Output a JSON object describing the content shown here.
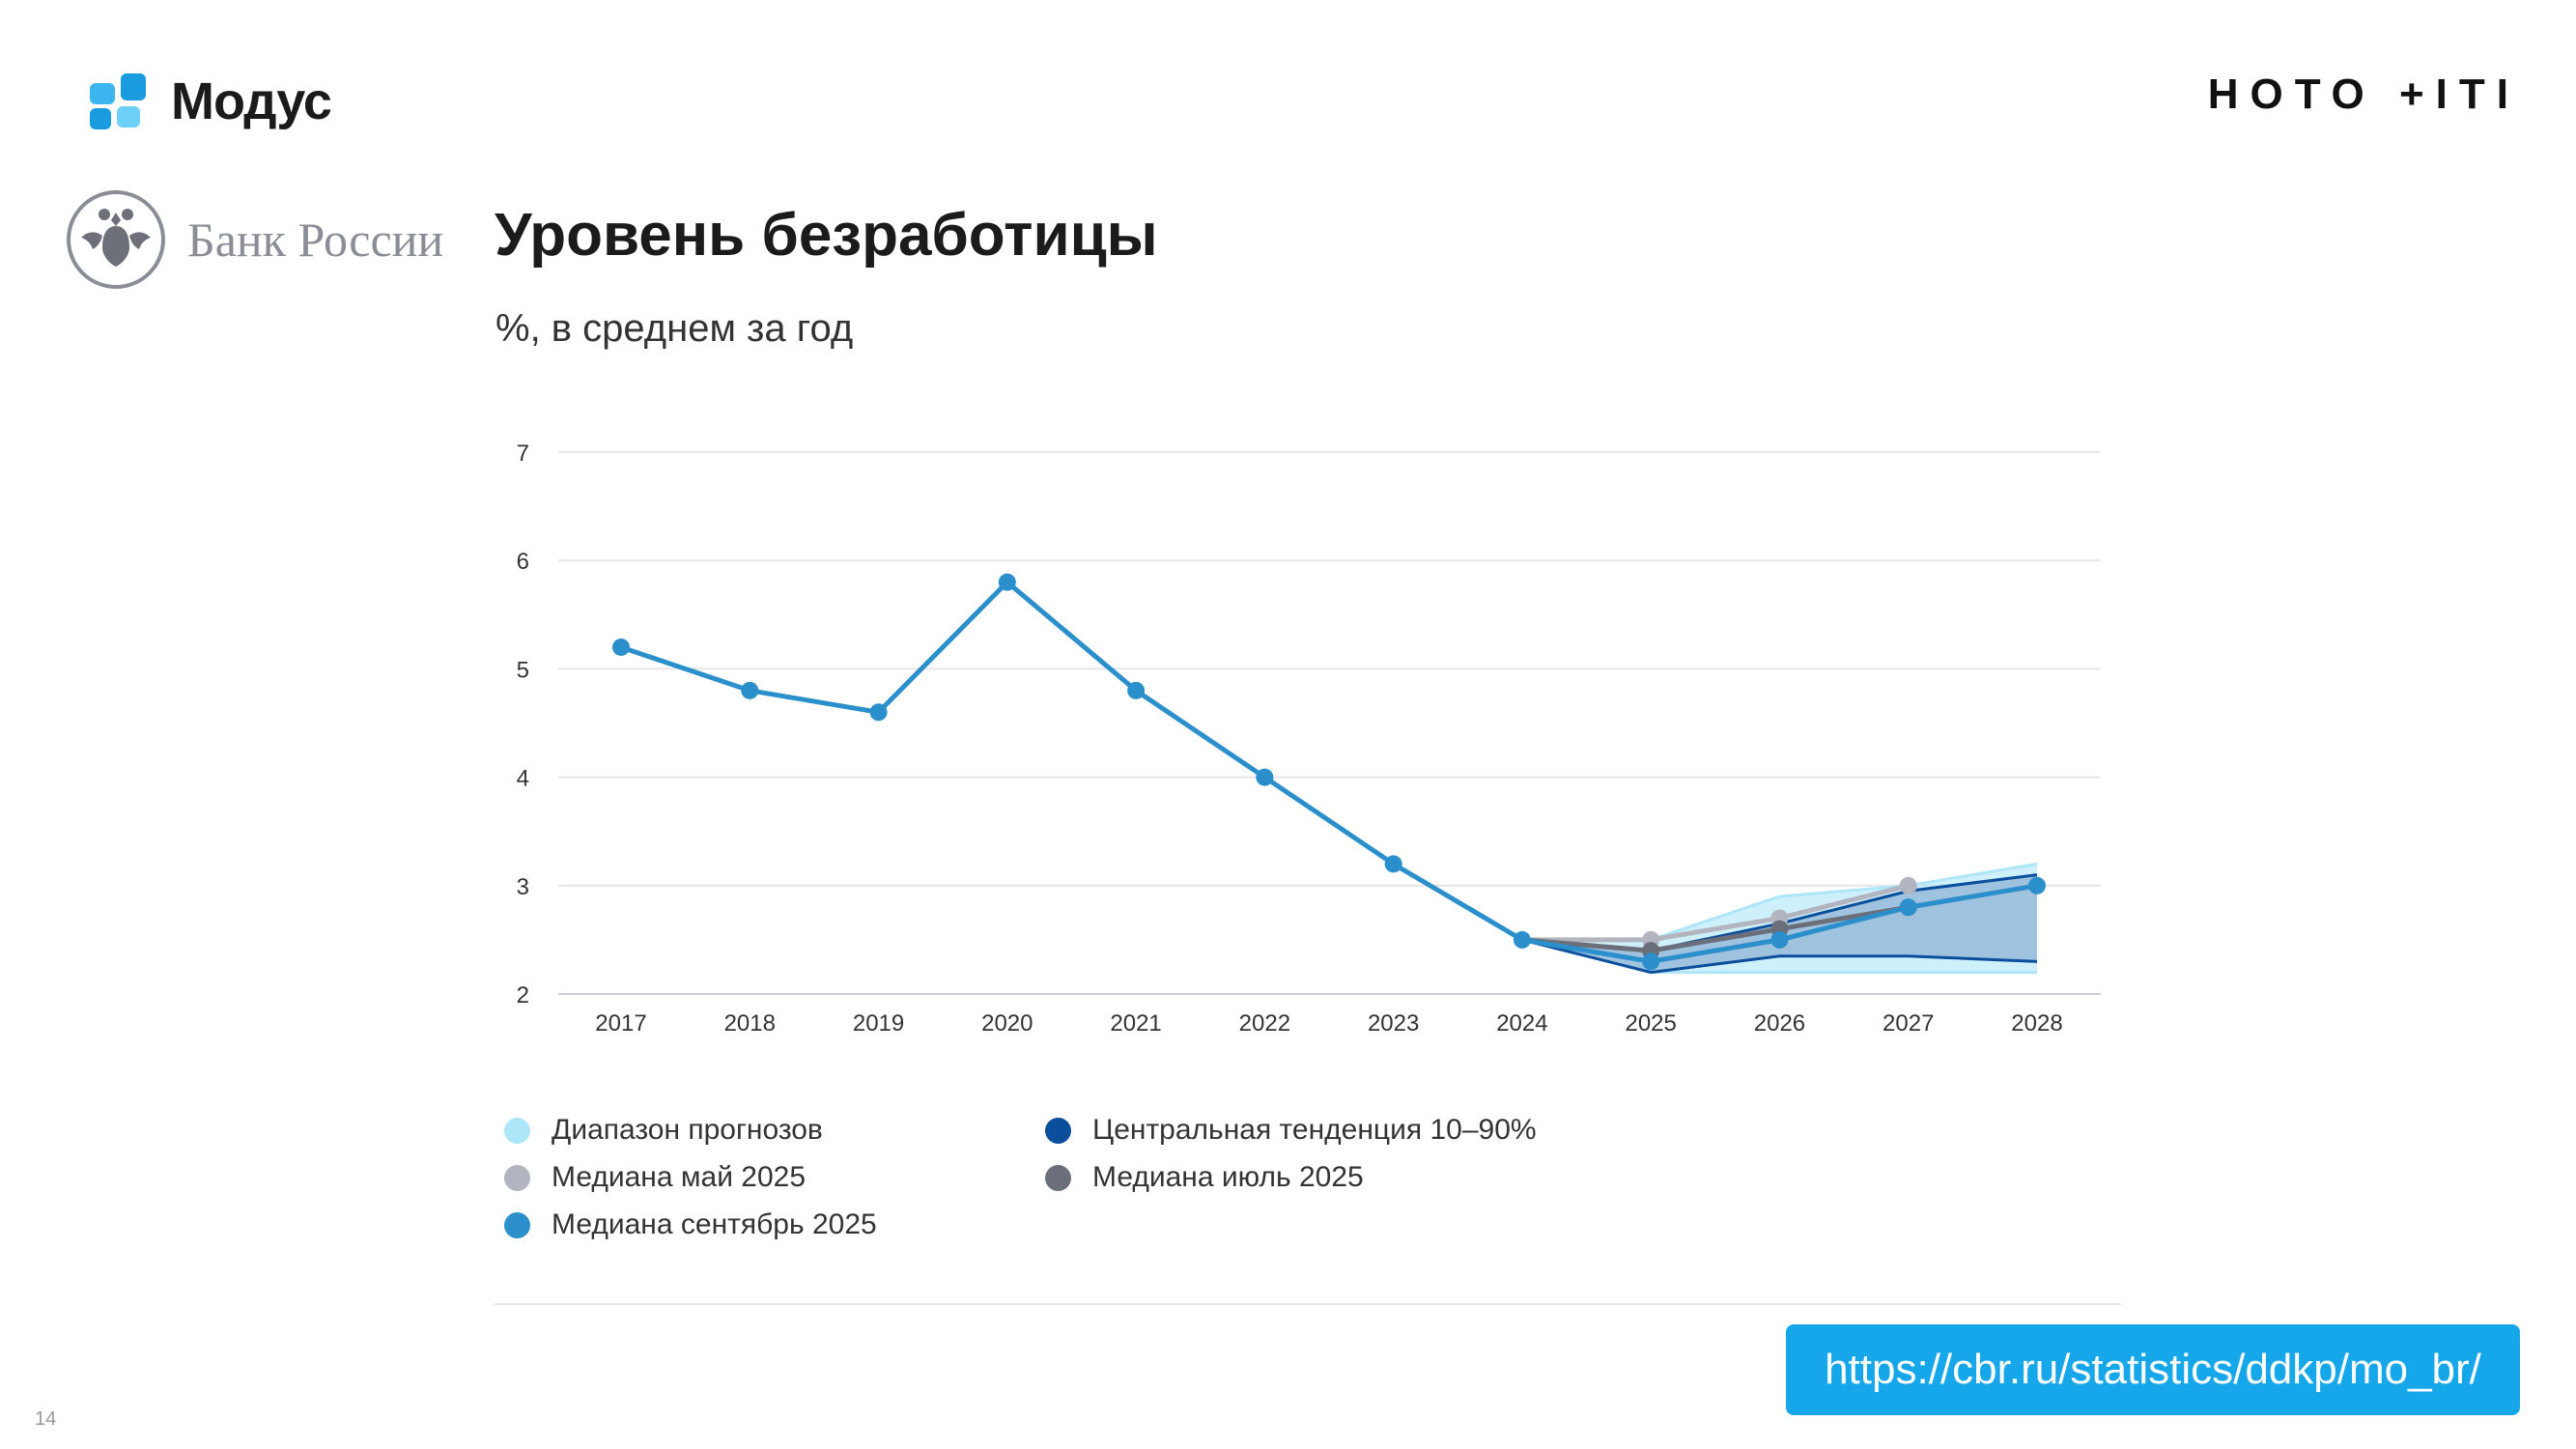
{
  "brand": {
    "name": "Модус"
  },
  "partner_logo": {
    "text": "НОТО +ITI"
  },
  "source_org": {
    "name": "Банк России"
  },
  "title": "Уровень безработицы",
  "subtitle": "%, в среднем за год",
  "page_number": "14",
  "url": "https://cbr.ru/statistics/ddkp/mo_br/",
  "colors": {
    "sept": "#2b8fcb",
    "may": "#b2b5bf",
    "july": "#6b6f7a",
    "central": "#0b4e9b",
    "central_fill": "#9fc2de",
    "range": "#aee6f9",
    "url_bg": "#16a6ea"
  },
  "chart_data": {
    "type": "line",
    "title": "Уровень безработицы",
    "ylabel": "%, в среднем за год",
    "ylim": [
      2,
      7
    ],
    "yticks": [
      "2",
      "3",
      "4",
      "5",
      "6",
      "7"
    ],
    "grid": true,
    "legend_placement": "bottom",
    "categories": [
      "2017",
      "2018",
      "2019",
      "2020",
      "2021",
      "2022",
      "2023",
      "2024",
      "2025",
      "2026",
      "2027",
      "2028"
    ],
    "series": [
      {
        "name": "Медиана сентябрь 2025",
        "values": [
          5.2,
          4.8,
          4.6,
          5.8,
          4.8,
          4.0,
          3.2,
          2.5,
          2.3,
          2.5,
          2.8,
          3.0
        ]
      },
      {
        "name": "Медиана май 2025",
        "values": [
          null,
          null,
          null,
          null,
          null,
          null,
          null,
          2.5,
          2.5,
          2.7,
          3.0,
          null
        ]
      },
      {
        "name": "Медиана июль 2025",
        "values": [
          null,
          null,
          null,
          null,
          null,
          null,
          null,
          2.5,
          2.4,
          2.6,
          2.8,
          null
        ]
      }
    ],
    "bands": [
      {
        "name": "Диапазон прогнозов",
        "lower": [
          null,
          null,
          null,
          null,
          null,
          null,
          null,
          2.5,
          2.2,
          2.2,
          2.2,
          2.2
        ],
        "upper": [
          null,
          null,
          null,
          null,
          null,
          null,
          null,
          2.5,
          2.5,
          2.9,
          3.0,
          3.2
        ]
      },
      {
        "name": "Центральная тенденция 10–90%",
        "lower": [
          null,
          null,
          null,
          null,
          null,
          null,
          null,
          2.5,
          2.2,
          2.35,
          2.35,
          2.3
        ],
        "upper": [
          null,
          null,
          null,
          null,
          null,
          null,
          null,
          2.5,
          2.4,
          2.65,
          2.95,
          3.1
        ]
      }
    ]
  },
  "legend": [
    {
      "label": "Диапазон прогнозов",
      "color": "#aee6f9"
    },
    {
      "label": "Центральная тенденция 10–90%",
      "color": "#0b4e9b"
    },
    {
      "label": "Медиана май 2025",
      "color": "#b2b5bf"
    },
    {
      "label": "Медиана июль 2025",
      "color": "#6b6f7a"
    },
    {
      "label": "Медиана сентябрь 2025",
      "color": "#2b8fcb"
    }
  ]
}
